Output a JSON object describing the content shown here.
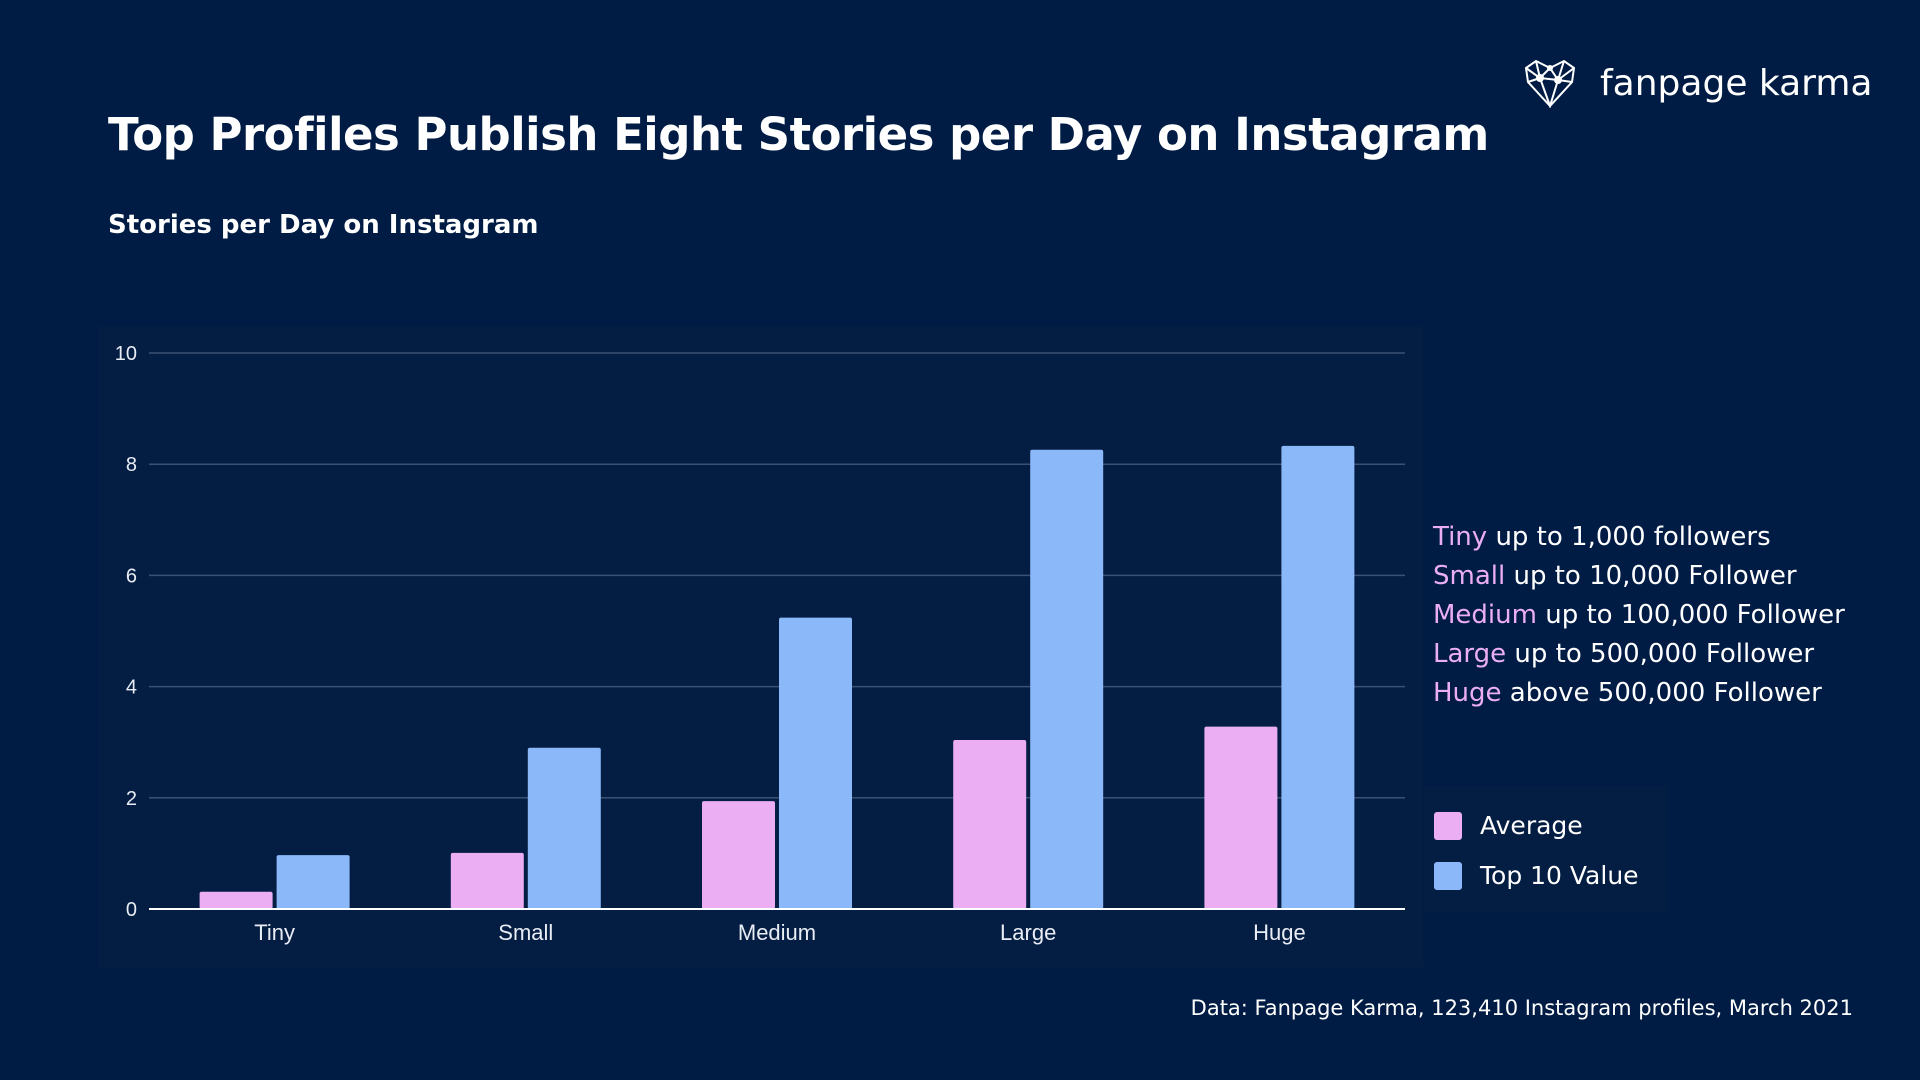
{
  "title": "Top Profiles Publish Eight Stories per Day on Instagram",
  "subtitle": "Stories per Day on Instagram",
  "logo": {
    "text": "fanpage karma",
    "icon": "heart-network-icon"
  },
  "size_definitions": [
    {
      "key": "Tiny",
      "text": "up to 1,000 followers"
    },
    {
      "key": "Small",
      "text": "up to 10,000 Follower"
    },
    {
      "key": "Medium",
      "text": "up to 100,000 Follower"
    },
    {
      "key": "Large",
      "text": "up to 500,000 Follower"
    },
    {
      "key": "Huge",
      "text": "above 500,000 Follower"
    }
  ],
  "footer": "Data: Fanpage Karma, 123,410 Instagram profiles, March 2021",
  "colors": {
    "background": "#001c45",
    "average": "#ebaef2",
    "top10": "#8ab8f8"
  },
  "chart_data": {
    "type": "bar",
    "title": "Stories per Day on Instagram",
    "categories": [
      "Tiny",
      "Small",
      "Medium",
      "Large",
      "Huge"
    ],
    "series": [
      {
        "name": "Average",
        "color": "#ebaef2",
        "values": [
          0.31,
          1.01,
          1.94,
          3.04,
          3.28
        ]
      },
      {
        "name": "Top 10 Value",
        "color": "#8ab8f8",
        "values": [
          0.97,
          2.9,
          5.24,
          8.26,
          8.33
        ]
      }
    ],
    "ylim": [
      0,
      10
    ],
    "yticks": [
      "0",
      "2",
      "4",
      "6",
      "8",
      "10"
    ],
    "xlabel": "",
    "ylabel": "",
    "grid": true,
    "legend": "right"
  }
}
